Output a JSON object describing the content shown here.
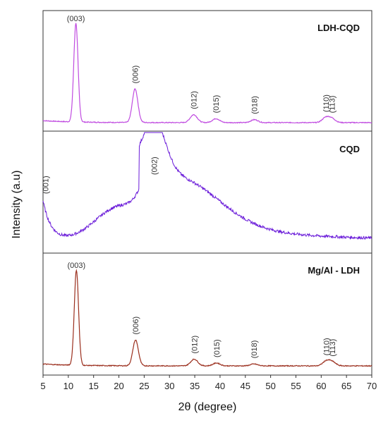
{
  "chart_data": {
    "type": "line",
    "xlabel": "2θ (degree)",
    "ylabel": "Intensity (a.u)",
    "xlim": [
      5,
      70
    ],
    "xticks": [
      5,
      10,
      15,
      20,
      25,
      30,
      35,
      40,
      45,
      50,
      55,
      60,
      65,
      70
    ],
    "series": [
      {
        "name": "LDH-CQD",
        "color": "#c04ce0",
        "peaks": [
          {
            "x": 11.5,
            "y": 1.0,
            "label": "(003)"
          },
          {
            "x": 23.2,
            "y": 0.34,
            "label": "(006)"
          },
          {
            "x": 34.8,
            "y": 0.08,
            "label": "(012)"
          },
          {
            "x": 39.2,
            "y": 0.04,
            "label": "(015)"
          },
          {
            "x": 46.8,
            "y": 0.03,
            "label": "(018)"
          },
          {
            "x": 60.9,
            "y": 0.05,
            "label": "(110)"
          },
          {
            "x": 62.1,
            "y": 0.04,
            "label": "(113)"
          }
        ]
      },
      {
        "name": "CQD",
        "color": "#6a1bd9",
        "peaks": [
          {
            "x": 5.5,
            "y": 0.45,
            "label": "(001)"
          },
          {
            "x": 27.0,
            "y": 0.95,
            "label": "(002)"
          }
        ]
      },
      {
        "name": "Mg/Al - LDH",
        "color": "#9b2f1e",
        "peaks": [
          {
            "x": 11.6,
            "y": 1.0,
            "label": "(003)"
          },
          {
            "x": 23.3,
            "y": 0.27,
            "label": "(006)"
          },
          {
            "x": 34.9,
            "y": 0.07,
            "label": "(012)"
          },
          {
            "x": 39.3,
            "y": 0.03,
            "label": "(015)"
          },
          {
            "x": 46.7,
            "y": 0.02,
            "label": "(018)"
          },
          {
            "x": 61.0,
            "y": 0.05,
            "label": "(110)"
          },
          {
            "x": 62.2,
            "y": 0.04,
            "label": "(113)"
          }
        ]
      }
    ]
  }
}
